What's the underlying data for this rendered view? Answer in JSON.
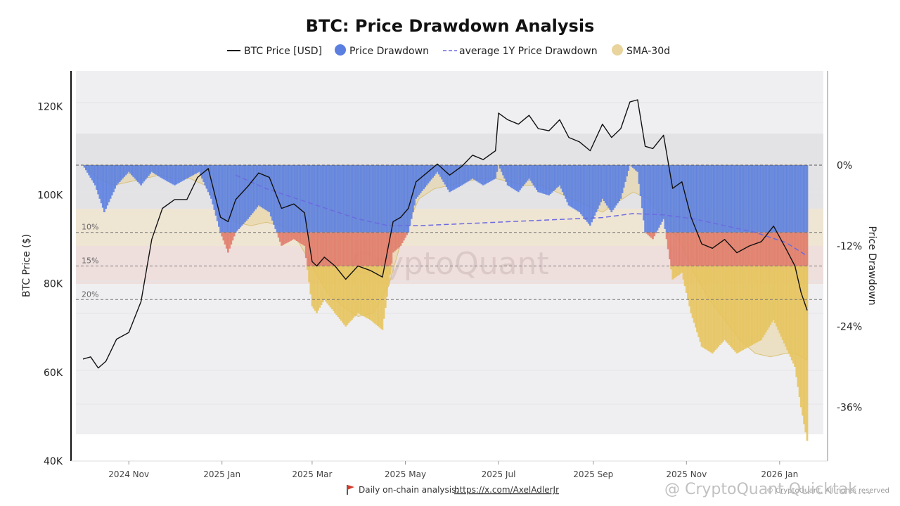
{
  "chart_data": {
    "type": "line",
    "title": "BTC: Price Drawdown Analysis",
    "legend": [
      {
        "label": "BTC Price [USD]",
        "kind": "line",
        "color": "#111111"
      },
      {
        "label": "Price Drawdown",
        "kind": "dot",
        "color": "#5b7fe0"
      },
      {
        "label": "average 1Y Price Drawdown",
        "kind": "dash",
        "color": "#6b6be0"
      },
      {
        "label": "SMA-30d",
        "kind": "dot",
        "color": "#e8d49c"
      }
    ],
    "ylabel_left": "BTC Price ($)",
    "ylabel_right": "Price Drawdown",
    "ylim_left": [
      40000,
      128000
    ],
    "ylim_right": [
      -0.44,
      0.14
    ],
    "yticks_left": [
      "120K",
      "100K",
      "80K",
      "60K",
      "40K"
    ],
    "yticks_left_values": [
      120000,
      100000,
      80000,
      60000,
      40000
    ],
    "yticks_right": [
      "0%",
      "-12%",
      "-24%",
      "-36%"
    ],
    "yticks_right_values": [
      0,
      -0.12,
      -0.24,
      -0.36
    ],
    "xlim": [
      0,
      480
    ],
    "xticks": [
      {
        "label": "2024 Nov",
        "day": 30
      },
      {
        "label": "2025 Jan",
        "day": 91
      },
      {
        "label": "2025 Mar",
        "day": 150
      },
      {
        "label": "2025 May",
        "day": 211
      },
      {
        "label": "2025 Jul",
        "day": 272
      },
      {
        "label": "2025 Sep",
        "day": 334
      },
      {
        "label": "2025 Nov",
        "day": 395
      },
      {
        "label": "2026 Jan",
        "day": 456
      }
    ],
    "levels": [
      {
        "label": "10%",
        "value": -0.1
      },
      {
        "label": "15%",
        "value": -0.15
      },
      {
        "label": "20%",
        "value": -0.2
      }
    ],
    "price": {
      "days": [
        0,
        5,
        10,
        15,
        22,
        30,
        38,
        45,
        52,
        60,
        68,
        75,
        82,
        90,
        95,
        100,
        108,
        115,
        122,
        130,
        138,
        145,
        150,
        153,
        158,
        165,
        172,
        180,
        188,
        196,
        203,
        208,
        213,
        218,
        225,
        232,
        240,
        248,
        255,
        262,
        270,
        272,
        278,
        285,
        292,
        298,
        305,
        312,
        318,
        325,
        332,
        340,
        346,
        352,
        358,
        363,
        368,
        373,
        380,
        386,
        392,
        398,
        405,
        412,
        420,
        428,
        436,
        444,
        452,
        460,
        466,
        470,
        474
      ],
      "values": [
        63000,
        63500,
        61000,
        62500,
        67500,
        69000,
        76000,
        90000,
        97000,
        99000,
        99000,
        104000,
        106000,
        95000,
        94000,
        99000,
        102000,
        105000,
        104000,
        97000,
        98000,
        96000,
        85000,
        84000,
        86000,
        84000,
        81000,
        84000,
        83000,
        81500,
        94000,
        95000,
        97000,
        103000,
        105000,
        107000,
        104500,
        106500,
        109000,
        108000,
        110000,
        118500,
        117000,
        116000,
        118000,
        115000,
        114500,
        117000,
        113000,
        112000,
        110000,
        116000,
        113000,
        115000,
        121000,
        121500,
        111000,
        110500,
        113500,
        101500,
        103000,
        95000,
        89000,
        88000,
        90000,
        87000,
        88500,
        89500,
        93000,
        88000,
        84000,
        78000,
        74000
      ]
    },
    "drawdown": {
      "days": [
        0,
        8,
        14,
        22,
        30,
        38,
        45,
        52,
        60,
        68,
        76,
        84,
        90,
        95,
        100,
        108,
        115,
        122,
        130,
        138,
        145,
        150,
        153,
        158,
        165,
        172,
        180,
        188,
        196,
        203,
        208,
        213,
        218,
        225,
        232,
        240,
        248,
        255,
        262,
        270,
        272,
        278,
        285,
        292,
        298,
        305,
        312,
        318,
        325,
        332,
        340,
        346,
        352,
        358,
        363,
        368,
        373,
        380,
        386,
        392,
        398,
        405,
        412,
        420,
        428,
        436,
        444,
        452,
        460,
        466,
        470,
        474
      ],
      "values": [
        0,
        -0.03,
        -0.07,
        -0.03,
        -0.01,
        -0.03,
        -0.01,
        -0.02,
        -0.03,
        -0.02,
        -0.01,
        -0.05,
        -0.1,
        -0.13,
        -0.1,
        -0.08,
        -0.06,
        -0.07,
        -0.12,
        -0.11,
        -0.12,
        -0.21,
        -0.22,
        -0.2,
        -0.22,
        -0.24,
        -0.22,
        -0.23,
        -0.245,
        -0.13,
        -0.12,
        -0.1,
        -0.05,
        -0.03,
        -0.01,
        -0.04,
        -0.03,
        -0.02,
        -0.03,
        -0.02,
        0,
        -0.03,
        -0.04,
        -0.02,
        -0.04,
        -0.045,
        -0.03,
        -0.06,
        -0.07,
        -0.09,
        -0.05,
        -0.07,
        -0.05,
        0,
        -0.01,
        -0.1,
        -0.11,
        -0.08,
        -0.17,
        -0.16,
        -0.22,
        -0.27,
        -0.28,
        -0.26,
        -0.28,
        -0.27,
        -0.26,
        -0.23,
        -0.27,
        -0.3,
        -0.36,
        -0.41
      ]
    },
    "sma30_drawdown": {
      "days": [
        0,
        10,
        20,
        30,
        40,
        50,
        60,
        70,
        80,
        90,
        100,
        110,
        120,
        130,
        140,
        150,
        160,
        170,
        180,
        190,
        200,
        210,
        220,
        230,
        240,
        250,
        260,
        270,
        280,
        290,
        300,
        310,
        320,
        330,
        340,
        350,
        360,
        370,
        380,
        390,
        400,
        410,
        420,
        430,
        440,
        450,
        460,
        466,
        474
      ],
      "values": [
        0,
        -0.02,
        -0.03,
        -0.025,
        -0.02,
        -0.015,
        -0.02,
        -0.02,
        -0.03,
        -0.06,
        -0.085,
        -0.09,
        -0.085,
        -0.09,
        -0.11,
        -0.15,
        -0.19,
        -0.21,
        -0.225,
        -0.22,
        -0.18,
        -0.1,
        -0.05,
        -0.035,
        -0.03,
        -0.025,
        -0.02,
        -0.02,
        -0.025,
        -0.03,
        -0.03,
        -0.04,
        -0.05,
        -0.06,
        -0.07,
        -0.055,
        -0.04,
        -0.05,
        -0.08,
        -0.11,
        -0.16,
        -0.2,
        -0.23,
        -0.26,
        -0.28,
        -0.285,
        -0.28,
        -0.28,
        -0.29
      ]
    },
    "avg_1y_drawdown": {
      "days": [
        100,
        120,
        140,
        160,
        180,
        200,
        220,
        240,
        260,
        280,
        300,
        320,
        340,
        360,
        380,
        400,
        420,
        440,
        460,
        474
      ],
      "values": [
        -0.015,
        -0.035,
        -0.05,
        -0.065,
        -0.08,
        -0.09,
        -0.09,
        -0.088,
        -0.086,
        -0.084,
        -0.082,
        -0.08,
        -0.078,
        -0.072,
        -0.074,
        -0.08,
        -0.09,
        -0.1,
        -0.115,
        -0.135
      ]
    }
  },
  "watermark": "CryptoQuant",
  "footer": {
    "text": "Daily on-chain analysis:",
    "link": "https://x.com/AxelAdlerJr"
  },
  "brand": {
    "main": "@ CryptoQuant Quicktak...",
    "small": "© CryptoQuant. All rights reserved"
  }
}
